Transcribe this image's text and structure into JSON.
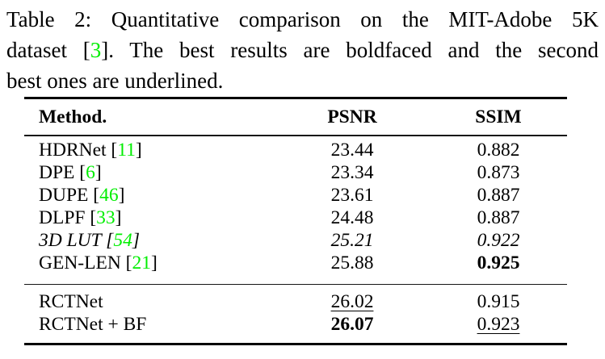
{
  "page": {
    "background": "#ffffff",
    "text_color": "#000000",
    "citation_color": "#00ee00"
  },
  "caption": {
    "lines": [
      {
        "justify": true,
        "segments": [
          {
            "text": "Table 2: Quantitative comparison on the MIT-Adobe 5K"
          }
        ]
      },
      {
        "justify": true,
        "segments": [
          {
            "text": "dataset ["
          },
          {
            "text": "3",
            "citation": true
          },
          {
            "text": "]. The best results are boldfaced and the second"
          }
        ]
      },
      {
        "justify": false,
        "segments": [
          {
            "text": "best ones are underlined."
          }
        ]
      }
    ]
  },
  "table": {
    "columns": [
      "Method.",
      "PSNR",
      "SSIM"
    ],
    "groups": [
      {
        "rows": [
          {
            "method": {
              "name": "HDRNet",
              "cite": "11"
            },
            "psnr": {
              "value": "23.44"
            },
            "ssim": {
              "value": "0.882"
            }
          },
          {
            "method": {
              "name": "DPE",
              "cite": "6"
            },
            "psnr": {
              "value": "23.34"
            },
            "ssim": {
              "value": "0.873"
            }
          },
          {
            "method": {
              "name": "DUPE",
              "cite": "46"
            },
            "psnr": {
              "value": "23.61"
            },
            "ssim": {
              "value": "0.887"
            }
          },
          {
            "method": {
              "name": "DLPF",
              "cite": "33"
            },
            "psnr": {
              "value": "24.48"
            },
            "ssim": {
              "value": "0.887"
            }
          },
          {
            "method": {
              "name": "3D LUT",
              "cite": "54",
              "italic": true
            },
            "psnr": {
              "value": "25.21",
              "italic": true
            },
            "ssim": {
              "value": "0.922",
              "italic": true
            }
          },
          {
            "method": {
              "name": "GEN-LEN",
              "cite": "21"
            },
            "psnr": {
              "value": "25.88"
            },
            "ssim": {
              "value": "0.925",
              "bold": true
            }
          }
        ]
      },
      {
        "rows": [
          {
            "method": {
              "name": "RCTNet"
            },
            "psnr": {
              "value": "26.02",
              "underline": true
            },
            "ssim": {
              "value": "0.915"
            }
          },
          {
            "method": {
              "name": "RCTNet + BF"
            },
            "psnr": {
              "value": "26.07",
              "bold": true
            },
            "ssim": {
              "value": "0.923",
              "underline": true
            }
          }
        ]
      }
    ]
  }
}
